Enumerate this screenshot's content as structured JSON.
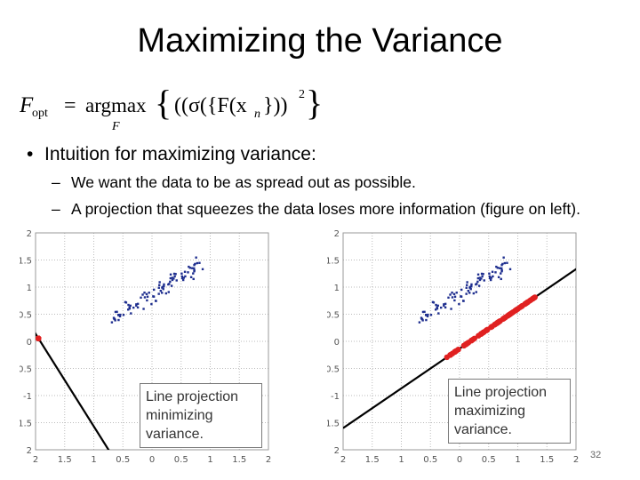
{
  "slide": {
    "title": "Maximizing the Variance",
    "formula": {
      "lhs": "F",
      "lhs_sub": "opt",
      "equals": "=",
      "op": "argmax",
      "op_sub": "F",
      "body": "((σ({F(x",
      "body_sub": "n",
      "body_end": "}))",
      "power": "2"
    },
    "bullet": "Intuition for maximizing variance:",
    "sub_bullets": [
      "We want the data to be as spread out as possible.",
      "A projection that squeezes the data loses more information (figure on left)."
    ],
    "page_number": "32"
  },
  "chart_data": [
    {
      "type": "scatter",
      "caption": "Line projection minimizing variance.",
      "xticks": [
        "2",
        "1.5",
        "1",
        "0.5",
        "0",
        "0.5",
        "1",
        "1.5",
        "2"
      ],
      "yticks": [
        "2",
        "1.5",
        "1",
        "0.5",
        "0",
        "0.5",
        "-1",
        "1.5",
        "2"
      ],
      "xlim": [
        -2,
        2
      ],
      "ylim": [
        -2,
        2
      ],
      "grid": true,
      "colors": {
        "data": "#1f2f8f",
        "projection": "#e02020",
        "line": "#000000"
      },
      "line": {
        "from": [
          -2.3,
          0.65
        ],
        "to": [
          -0.6,
          -2.25
        ]
      },
      "projected_range": [
        -2.18,
        -1.95
      ]
    },
    {
      "type": "scatter",
      "caption": "Line projection maximizing variance.",
      "xticks": [
        "2",
        "1.5",
        "1",
        "0.5",
        "0",
        "0.5",
        "1",
        "1.5",
        "2"
      ],
      "yticks": [
        "2",
        "1.5",
        "1",
        "0.5",
        "0",
        "0.5",
        "-1",
        "1.5",
        "2"
      ],
      "xlim": [
        -2,
        2
      ],
      "ylim": [
        -2,
        2
      ],
      "grid": true,
      "colors": {
        "data": "#1f2f8f",
        "projection": "#e02020",
        "line": "#000000"
      },
      "line": {
        "from": [
          -2,
          -1.6
        ],
        "to": [
          2.3,
          1.55
        ]
      },
      "projected_range": [
        -1.65,
        1.5
      ]
    }
  ]
}
